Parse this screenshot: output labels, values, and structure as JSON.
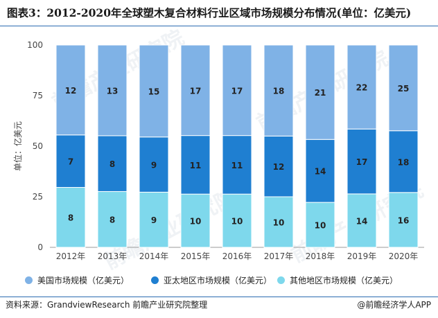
{
  "title": "图表3：2012-2020年全球塑木复合材料行业区域市场规模分布情况(单位：亿美元)",
  "source": "资料来源：GrandviewResearch 前瞻产业研究院整理",
  "brand": "@前瞻经济学人APP",
  "watermark": "前瞻产业研究院",
  "colors": {
    "america": "#7fb2e6",
    "asia_pacific": "#1f7fd1",
    "others": "#7ed8ec",
    "axis_text": "#444444",
    "accent_rule": "#2a6ab0"
  },
  "chart_data": {
    "type": "bar",
    "stacking": "percent",
    "categories": [
      "2012年",
      "2013年",
      "2014年",
      "2015年",
      "2016年",
      "2017年",
      "2018年",
      "2019年",
      "2020年"
    ],
    "series": [
      {
        "name": "其他地区市场规模（亿美元）",
        "values": [
          8,
          8,
          9,
          10,
          10,
          10,
          10,
          14,
          16
        ],
        "color_key": "others"
      },
      {
        "name": "亚太地区市场规模（亿美元）",
        "values": [
          7,
          8,
          9,
          11,
          11,
          12,
          14,
          17,
          18
        ],
        "color_key": "asia_pacific"
      },
      {
        "name": "美国市场规模（亿美元）",
        "values": [
          12,
          13,
          15,
          17,
          17,
          18,
          21,
          22,
          25
        ],
        "color_key": "america"
      }
    ],
    "legend_order": [
      2,
      1,
      0
    ],
    "ylabel": "单位：亿美元",
    "ylim": [
      0,
      100
    ],
    "yticks": [
      0,
      25,
      50,
      75,
      100
    ],
    "grid": false,
    "legend_position": "bottom"
  }
}
